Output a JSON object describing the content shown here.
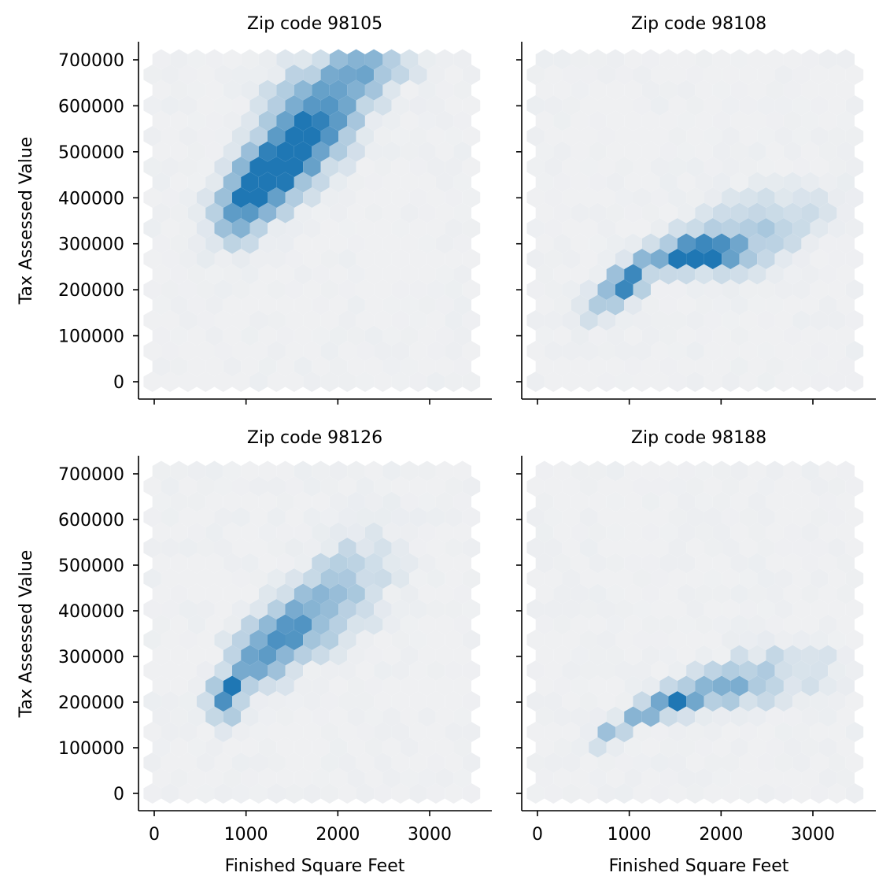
{
  "chart_data": {
    "type": "hexbin",
    "layout": "2x2 facet grid",
    "xlabel": "Finished Square Feet",
    "ylabel": "Tax Assessed Value",
    "xlim": [
      -150,
      3650
    ],
    "ylim": [
      -30000,
      740000
    ],
    "x_ticks": [
      0,
      1000,
      2000,
      3000
    ],
    "y_ticks": [
      0,
      100000,
      200000,
      300000,
      400000,
      500000,
      600000,
      700000
    ],
    "grid": false,
    "colormap": {
      "low": "#eff0f2",
      "high": "#1f77b4"
    },
    "panels": [
      {
        "title": "Zip code 98105",
        "clusters": [
          {
            "x": 1450,
            "y": 480000,
            "sx": 380,
            "sy": 80000,
            "rho": 0.7,
            "w": 1.0
          },
          {
            "x": 1100,
            "y": 430000,
            "sx": 220,
            "sy": 45000,
            "rho": 0.3,
            "w": 0.7
          },
          {
            "x": 1800,
            "y": 600000,
            "sx": 380,
            "sy": 70000,
            "rho": 0.4,
            "w": 0.55
          },
          {
            "x": 2300,
            "y": 680000,
            "sx": 300,
            "sy": 30000,
            "rho": 0.0,
            "w": 0.45
          },
          {
            "x": 850,
            "y": 340000,
            "sx": 150,
            "sy": 40000,
            "rho": 0.3,
            "w": 0.3
          }
        ]
      },
      {
        "title": "Zip code 98108",
        "clusters": [
          {
            "x": 1600,
            "y": 275000,
            "sx": 270,
            "sy": 20000,
            "rho": 0.2,
            "w": 1.0
          },
          {
            "x": 1000,
            "y": 225000,
            "sx": 140,
            "sy": 25000,
            "rho": 0.4,
            "w": 0.9
          },
          {
            "x": 1950,
            "y": 280000,
            "sx": 280,
            "sy": 28000,
            "rho": 0.0,
            "w": 0.6
          },
          {
            "x": 800,
            "y": 180000,
            "sx": 180,
            "sy": 30000,
            "rho": 0.5,
            "w": 0.45
          },
          {
            "x": 2400,
            "y": 340000,
            "sx": 450,
            "sy": 50000,
            "rho": 0.4,
            "w": 0.3
          }
        ]
      },
      {
        "title": "Zip code 98126",
        "clusters": [
          {
            "x": 780,
            "y": 225000,
            "sx": 80,
            "sy": 20000,
            "rho": 0.3,
            "w": 1.0
          },
          {
            "x": 1150,
            "y": 300000,
            "sx": 280,
            "sy": 60000,
            "rho": 0.6,
            "w": 0.6
          },
          {
            "x": 1600,
            "y": 370000,
            "sx": 320,
            "sy": 60000,
            "rho": 0.5,
            "w": 0.45
          },
          {
            "x": 2050,
            "y": 450000,
            "sx": 380,
            "sy": 80000,
            "rho": 0.5,
            "w": 0.28
          },
          {
            "x": 800,
            "y": 175000,
            "sx": 100,
            "sy": 25000,
            "rho": 0.0,
            "w": 0.3
          }
        ]
      },
      {
        "title": "Zip code 98188",
        "clusters": [
          {
            "x": 1150,
            "y": 178000,
            "sx": 100,
            "sy": 14000,
            "rho": 0.3,
            "w": 1.0
          },
          {
            "x": 1480,
            "y": 200000,
            "sx": 160,
            "sy": 16000,
            "rho": 0.3,
            "w": 0.85
          },
          {
            "x": 1950,
            "y": 225000,
            "sx": 320,
            "sy": 25000,
            "rho": 0.3,
            "w": 0.5
          },
          {
            "x": 800,
            "y": 135000,
            "sx": 120,
            "sy": 18000,
            "rho": 0.4,
            "w": 0.45
          },
          {
            "x": 2500,
            "y": 260000,
            "sx": 450,
            "sy": 40000,
            "rho": 0.2,
            "w": 0.25
          }
        ]
      }
    ]
  }
}
